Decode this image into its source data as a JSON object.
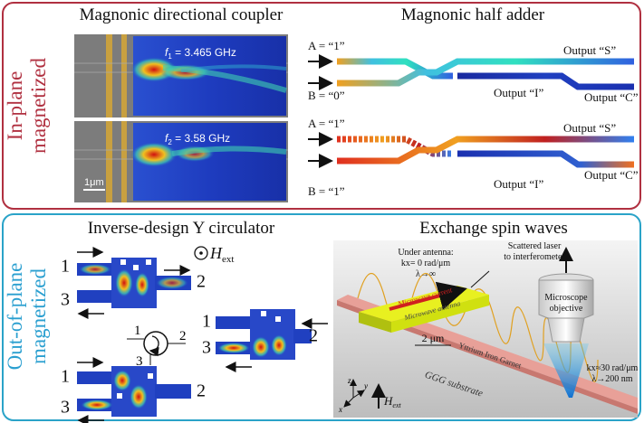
{
  "top_panel": {
    "label": [
      "In-plane",
      "magnetized"
    ],
    "coupler": {
      "title": "Magnonic directional coupler",
      "frequencies": [
        {
          "symbol": "f",
          "subscript": "1",
          "text": " = 3.465 GHz"
        },
        {
          "symbol": "f",
          "subscript": "2",
          "text": " = 3.58 GHz"
        }
      ],
      "scale_bar": "1μm"
    },
    "half_adder": {
      "title": "Magnonic half adder",
      "cases": [
        {
          "input_a": "A = “1”",
          "input_b": "B = “0”",
          "output_s": "Output “S”",
          "output_c": "Output “C”",
          "output_i": "Output “I”"
        },
        {
          "input_a": "A = “1”",
          "input_b": "B = “1”",
          "output_s": "Output “S”",
          "output_c": "Output “C”",
          "output_i": "Output “I”"
        }
      ]
    }
  },
  "bottom_panel": {
    "label": [
      "Out-of-plane",
      "magnetized"
    ],
    "circulator": {
      "title": "Inverse-design Y circulator",
      "field": {
        "symbol": "H",
        "subscript": "ext"
      },
      "devices": [
        [
          "1",
          "3",
          "2"
        ],
        [
          "1",
          "3",
          "2"
        ],
        [
          "1",
          "3",
          "2"
        ]
      ],
      "symbol_ports": [
        "1",
        "2",
        "3"
      ]
    },
    "exchange": {
      "title": "Exchange spin waves",
      "antenna_note": [
        "Under antenna:",
        "kx= 0 rad/μm",
        "λ→∞"
      ],
      "laser_note": [
        "Scattered laser",
        "to interferometer"
      ],
      "objective": [
        "Microscope",
        "objective"
      ],
      "current": "Microwave current",
      "antenna": "Microwave antenna",
      "width": "2 μm",
      "film": "Yttrium Iron Garnet",
      "substrate": "GGG substrate",
      "far_note": [
        "kx≈30 rad/μm",
        "λ→200 nm"
      ],
      "field": {
        "symbol": "H",
        "subscript": "ext"
      },
      "axes": [
        "z",
        "y",
        "x"
      ]
    }
  }
}
